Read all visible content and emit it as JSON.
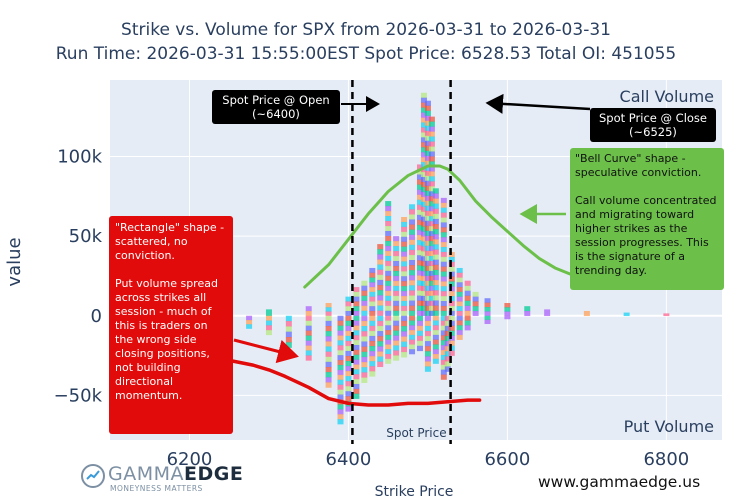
{
  "title": {
    "line1": "Strike vs. Volume for SPX from 2026-03-31 to 2026-03-31",
    "line2": "Run Time: 2026-03-31 15:55:00EST Spot Price: 6528.53 Total OI: 451055"
  },
  "chart_data": {
    "type": "bar",
    "xlabel": "Strike Price",
    "ylabel": "value",
    "xlim": [
      6100,
      6870
    ],
    "ylim": [
      -78000,
      148000
    ],
    "xticks": [
      6200,
      6400,
      6600,
      6800
    ],
    "yticks": [
      -50000,
      0,
      50000,
      100000
    ],
    "ytick_labels": [
      "−50k",
      "0",
      "50k",
      "100k"
    ],
    "quadrant_labels": {
      "top": "Call Volume",
      "bottom": "Put Volume"
    },
    "series": [
      {
        "name": "Call Volume",
        "strikes": [
          6200,
          6250,
          6300,
          6350,
          6375,
          6400,
          6410,
          6420,
          6430,
          6440,
          6450,
          6460,
          6470,
          6480,
          6490,
          6495,
          6500,
          6505,
          6510,
          6520,
          6530,
          6540,
          6550,
          6560,
          6575,
          6600,
          6625,
          6650,
          6700,
          6750,
          6800
        ],
        "values": [
          2000,
          3000,
          4000,
          6000,
          8000,
          12000,
          18000,
          22000,
          30000,
          45000,
          72000,
          50000,
          62000,
          70000,
          95000,
          140000,
          135000,
          125000,
          80000,
          74000,
          40000,
          30000,
          22000,
          15000,
          11000,
          8000,
          6000,
          4000,
          3000,
          2000,
          1500
        ]
      },
      {
        "name": "Put Volume",
        "strikes": [
          6200,
          6250,
          6275,
          6300,
          6325,
          6350,
          6375,
          6390,
          6400,
          6410,
          6420,
          6430,
          6440,
          6450,
          6460,
          6470,
          6480,
          6490,
          6500,
          6510,
          6520,
          6525,
          6530,
          6540,
          6550,
          6575,
          6600
        ],
        "values": [
          -3000,
          -6000,
          -8000,
          -12000,
          -20000,
          -28000,
          -45000,
          -68000,
          -60000,
          -52000,
          -42000,
          -38000,
          -32000,
          -30000,
          -28000,
          -26000,
          -24000,
          -22000,
          -35000,
          -30000,
          -40000,
          -35000,
          -25000,
          -15000,
          -9000,
          -5000,
          -2000
        ]
      }
    ],
    "vlines": [
      {
        "label": "Spot Price @ Open\n(~6400)",
        "x": 6405
      },
      {
        "label": "Spot Price @ Close\n(~6525)",
        "x": 6528.53,
        "text": "Spot Price"
      }
    ],
    "annotation_curves": {
      "green": {
        "x": [
          6345,
          6375,
          6400,
          6425,
          6450,
          6475,
          6500,
          6515,
          6525,
          6540,
          6560,
          6580,
          6600,
          6620,
          6640,
          6660,
          6680,
          6700
        ],
        "y": [
          18000,
          32000,
          48000,
          64000,
          78000,
          88000,
          94000,
          94000,
          92000,
          85000,
          72000,
          62000,
          53000,
          44000,
          36000,
          30000,
          26000,
          24000
        ]
      },
      "red": {
        "x": [
          6220,
          6250,
          6280,
          6300,
          6320,
          6350,
          6375,
          6400,
          6425,
          6450,
          6475,
          6500,
          6525,
          6550,
          6565
        ],
        "y": [
          -25000,
          -28000,
          -31000,
          -34000,
          -38000,
          -45000,
          -52000,
          -55000,
          -56000,
          -56000,
          -55000,
          -55000,
          -54000,
          -53000,
          -53000
        ]
      }
    },
    "annotations": {
      "red_box": "\"Rectangle\" shape - scattered, no conviction.\n\nPut volume spread across strikes all session - much of this is traders on the wrong side closing positions, not building directional momentum.",
      "green_box": "\"Bell Curve\" shape - speculative conviction.\n\nCall volume concentrated and migrating toward higher strikes as the session progresses. This is the signature of a trending day."
    },
    "colors": {
      "plot_bg": "#e5ecf6",
      "grid": "#ffffff",
      "green": "#6cc04a",
      "red": "#e20b0b",
      "spot_line": "#000000"
    }
  },
  "branding": {
    "logo_gamma": "GAMMA",
    "logo_edge": "EDGE",
    "logo_tagline": "MONEYNESS MATTERS",
    "website": "www.gammaedge.us"
  }
}
